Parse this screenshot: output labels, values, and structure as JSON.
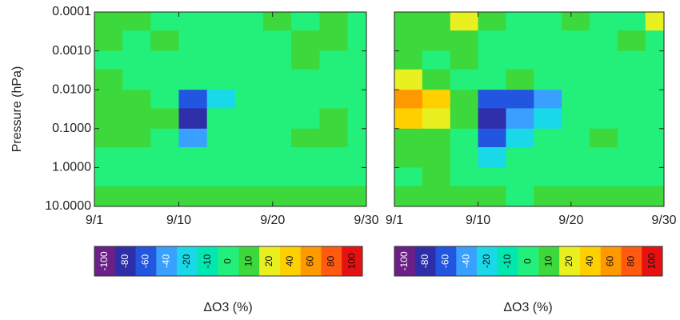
{
  "chart_data": [
    {
      "type": "heatmap",
      "ylabel": "Pressure (hPa)",
      "log_y": true,
      "xlim": [
        1,
        30
      ],
      "xticks": [
        {
          "value": 1,
          "label": "9/1"
        },
        {
          "value": 10,
          "label": "9/10"
        },
        {
          "value": 20,
          "label": "9/20"
        },
        {
          "value": 30,
          "label": "9/30"
        }
      ],
      "ylim": [
        0.0001,
        10
      ],
      "yticks": [
        {
          "value": 0.0001,
          "label": "0.0001"
        },
        {
          "value": 0.001,
          "label": "0.0010"
        },
        {
          "value": 0.01,
          "label": "0.0100"
        },
        {
          "value": 0.1,
          "label": "0.1000"
        },
        {
          "value": 1,
          "label": "1.0000"
        },
        {
          "value": 10,
          "label": "10.0000"
        }
      ],
      "x_bins": [
        1,
        4,
        7,
        10,
        13,
        16,
        19,
        22,
        25,
        28,
        30
      ],
      "y_bins": [
        0.0001,
        0.0003,
        0.001,
        0.003,
        0.01,
        0.03,
        0.1,
        0.3,
        1,
        3,
        10
      ],
      "z": [
        [
          10,
          10,
          0,
          0,
          0,
          0,
          10,
          0,
          10,
          0
        ],
        [
          10,
          0,
          10,
          0,
          0,
          0,
          0,
          10,
          10,
          0
        ],
        [
          0,
          0,
          0,
          0,
          0,
          0,
          0,
          10,
          0,
          0
        ],
        [
          10,
          0,
          0,
          0,
          0,
          0,
          0,
          0,
          0,
          0
        ],
        [
          10,
          10,
          0,
          -60,
          -20,
          0,
          0,
          0,
          0,
          0
        ],
        [
          10,
          10,
          10,
          -80,
          0,
          0,
          0,
          0,
          10,
          0
        ],
        [
          10,
          10,
          0,
          -40,
          0,
          0,
          0,
          10,
          10,
          0
        ],
        [
          0,
          0,
          0,
          0,
          0,
          0,
          0,
          0,
          0,
          0
        ],
        [
          0,
          0,
          0,
          0,
          0,
          0,
          0,
          0,
          0,
          0
        ],
        [
          10,
          10,
          10,
          10,
          10,
          10,
          10,
          10,
          10,
          10
        ]
      ],
      "colorbar": {
        "label": "ΔO3 (%)",
        "levels": [
          -100,
          -80,
          -60,
          -40,
          -20,
          -10,
          0,
          10,
          20,
          40,
          60,
          80,
          100
        ],
        "colors": [
          "#6b1f87",
          "#2e2ea8",
          "#2255e0",
          "#3aa0ff",
          "#19d8e8",
          "#00e8b0",
          "#22f07a",
          "#3cd83c",
          "#e8f020",
          "#ffd000",
          "#ff9900",
          "#ff5a10",
          "#e81010"
        ]
      }
    },
    {
      "type": "heatmap",
      "log_y": true,
      "xlim": [
        1,
        30
      ],
      "xticks": [
        {
          "value": 1,
          "label": "9/1"
        },
        {
          "value": 10,
          "label": "9/10"
        },
        {
          "value": 20,
          "label": "9/20"
        },
        {
          "value": 30,
          "label": "9/30"
        }
      ],
      "ylim": [
        0.0001,
        10
      ],
      "yticks": [
        0.0001,
        0.001,
        0.01,
        0.1,
        1,
        10
      ],
      "x_bins": [
        1,
        4,
        7,
        10,
        13,
        16,
        19,
        22,
        25,
        28,
        30
      ],
      "y_bins": [
        0.0001,
        0.0003,
        0.001,
        0.003,
        0.01,
        0.03,
        0.1,
        0.3,
        1,
        3,
        10
      ],
      "z": [
        [
          10,
          10,
          20,
          10,
          0,
          0,
          10,
          0,
          0,
          20
        ],
        [
          10,
          10,
          10,
          0,
          0,
          0,
          0,
          0,
          10,
          0
        ],
        [
          10,
          0,
          10,
          0,
          0,
          0,
          0,
          0,
          0,
          0
        ],
        [
          20,
          10,
          0,
          0,
          10,
          0,
          0,
          0,
          0,
          0
        ],
        [
          60,
          40,
          10,
          -60,
          -60,
          -40,
          0,
          0,
          0,
          0
        ],
        [
          40,
          20,
          10,
          -80,
          -40,
          -20,
          0,
          0,
          0,
          0
        ],
        [
          10,
          10,
          0,
          -60,
          -20,
          0,
          0,
          10,
          0,
          0
        ],
        [
          10,
          10,
          0,
          -20,
          0,
          0,
          0,
          0,
          0,
          0
        ],
        [
          0,
          10,
          0,
          0,
          0,
          0,
          0,
          0,
          0,
          0
        ],
        [
          10,
          10,
          10,
          10,
          0,
          10,
          10,
          10,
          10,
          10
        ]
      ],
      "colorbar": {
        "label": "ΔO3 (%)",
        "levels": [
          -100,
          -80,
          -60,
          -40,
          -20,
          -10,
          0,
          10,
          20,
          40,
          60,
          80,
          100
        ],
        "colors": [
          "#6b1f87",
          "#2e2ea8",
          "#2255e0",
          "#3aa0ff",
          "#19d8e8",
          "#00e8b0",
          "#22f07a",
          "#3cd83c",
          "#e8f020",
          "#ffd000",
          "#ff9900",
          "#ff5a10",
          "#e81010"
        ]
      }
    }
  ]
}
